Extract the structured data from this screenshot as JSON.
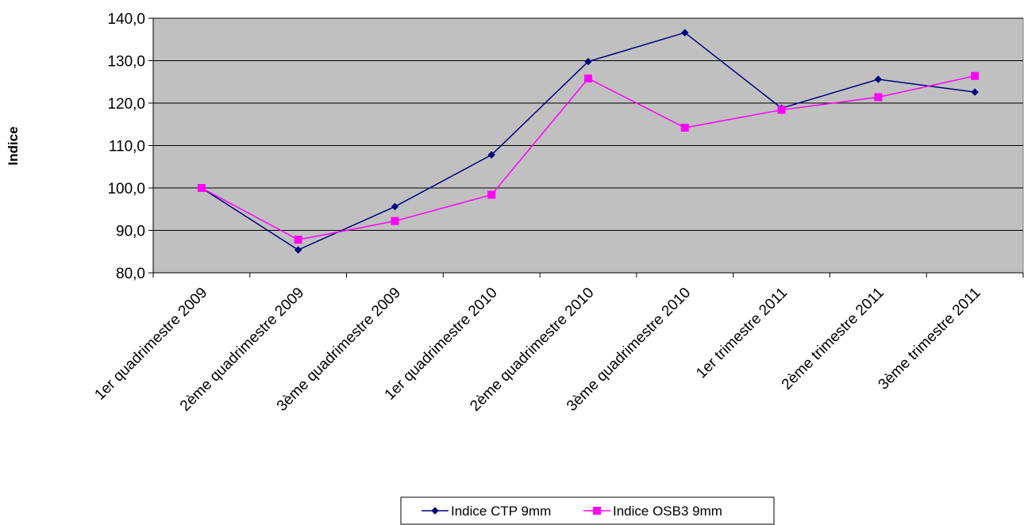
{
  "chart_data": {
    "type": "line",
    "title": "",
    "xlabel": "",
    "ylabel": "Indice",
    "categories": [
      "1er quadrimestre 2009",
      "2ème quadrimestre 2009",
      "3ème quadrimestre 2009",
      "1er quadrimestre 2010",
      "2ème quadrimestre 2010",
      "3ème quadrimestre 2010",
      "1er trimestre 2011",
      "2ème trimestre 2011",
      "3ème trimestre 2011"
    ],
    "series": [
      {
        "name": "Indice CTP 9mm",
        "color": "#000080",
        "marker": "diamond",
        "values": [
          100.0,
          85.4,
          95.6,
          107.8,
          129.8,
          136.6,
          118.8,
          125.6,
          122.6
        ]
      },
      {
        "name": "Indice OSB3 9mm",
        "color": "#ff00ff",
        "marker": "square",
        "values": [
          100.0,
          87.8,
          92.2,
          98.4,
          125.8,
          114.2,
          118.4,
          121.4,
          126.4
        ]
      }
    ],
    "ylim": [
      80,
      140
    ],
    "yticks": [
      80,
      90,
      100,
      110,
      120,
      130,
      140
    ],
    "ytick_labels": [
      "80,0",
      "90,0",
      "100,0",
      "110,0",
      "120,0",
      "130,0",
      "140,0"
    ],
    "grid": true,
    "plot_background": "#c0c0c0",
    "legend_position": "bottom"
  }
}
